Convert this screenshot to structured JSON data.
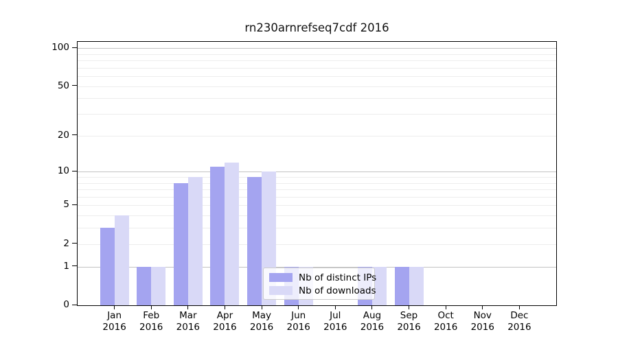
{
  "chart_data": {
    "type": "bar",
    "title": "rn230arnrefseq7cdf 2016",
    "categories": [
      "Jan 2016",
      "Feb 2016",
      "Mar 2016",
      "Apr 2016",
      "May 2016",
      "Jun 2016",
      "Jul 2016",
      "Aug 2016",
      "Sep 2016",
      "Oct 2016",
      "Nov 2016",
      "Dec 2016"
    ],
    "x_tick_month": [
      "Jan",
      "Feb",
      "Mar",
      "Apr",
      "May",
      "Jun",
      "Jul",
      "Aug",
      "Sep",
      "Oct",
      "Nov",
      "Dec"
    ],
    "x_tick_year": "2016",
    "series": [
      {
        "name": "Nb of distinct IPs",
        "color": "#a4a4f0",
        "values": [
          3,
          1,
          8,
          11,
          9,
          1,
          0,
          1,
          1,
          0,
          0,
          0
        ]
      },
      {
        "name": "Nb of downloads",
        "color": "#d9d9f7",
        "values": [
          4,
          1,
          9,
          12,
          10,
          1,
          0,
          1,
          1,
          0,
          0,
          0
        ]
      }
    ],
    "xlabel": "",
    "ylabel": "",
    "yscale": "log1p",
    "ylim": [
      0,
      112
    ],
    "yticks": [
      0,
      1,
      2,
      5,
      10,
      20,
      50,
      100
    ],
    "major_gridlines": [
      1,
      10,
      100
    ],
    "minor_gridlines": [
      2,
      3,
      4,
      5,
      6,
      7,
      8,
      9,
      20,
      30,
      40,
      50,
      60,
      70,
      80,
      90
    ],
    "grid": true,
    "legend_position": "lower center"
  },
  "colors": {
    "bar_distinct_ips": "#a4a4f0",
    "bar_downloads": "#d9d9f7",
    "major_gridline": "#c2c2c2",
    "minor_gridline": "#ededed",
    "axis": "#000000",
    "text": "#000000",
    "background": "#ffffff"
  }
}
